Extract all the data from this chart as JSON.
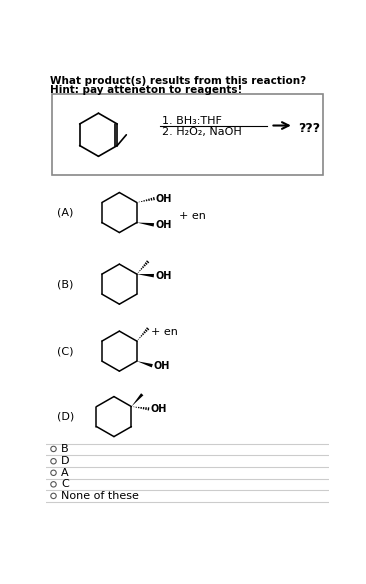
{
  "title_line1": "What product(s) results from this reaction?",
  "title_line2": "Hint: pay atteneton to reagents!",
  "reagent1": "1. BH₃:THF",
  "reagent2": "2. H₂O₂, NaOH",
  "product_label": "???",
  "options": [
    "B",
    "D",
    "A",
    "C",
    "None of these"
  ],
  "choice_labels": [
    "(A)",
    "(B)",
    "(C)",
    "(D)"
  ],
  "bg_color": "#ffffff",
  "text_color": "#000000",
  "font_size_title": 7.5,
  "font_size_label": 8,
  "font_size_option": 8,
  "font_size_oh": 7
}
